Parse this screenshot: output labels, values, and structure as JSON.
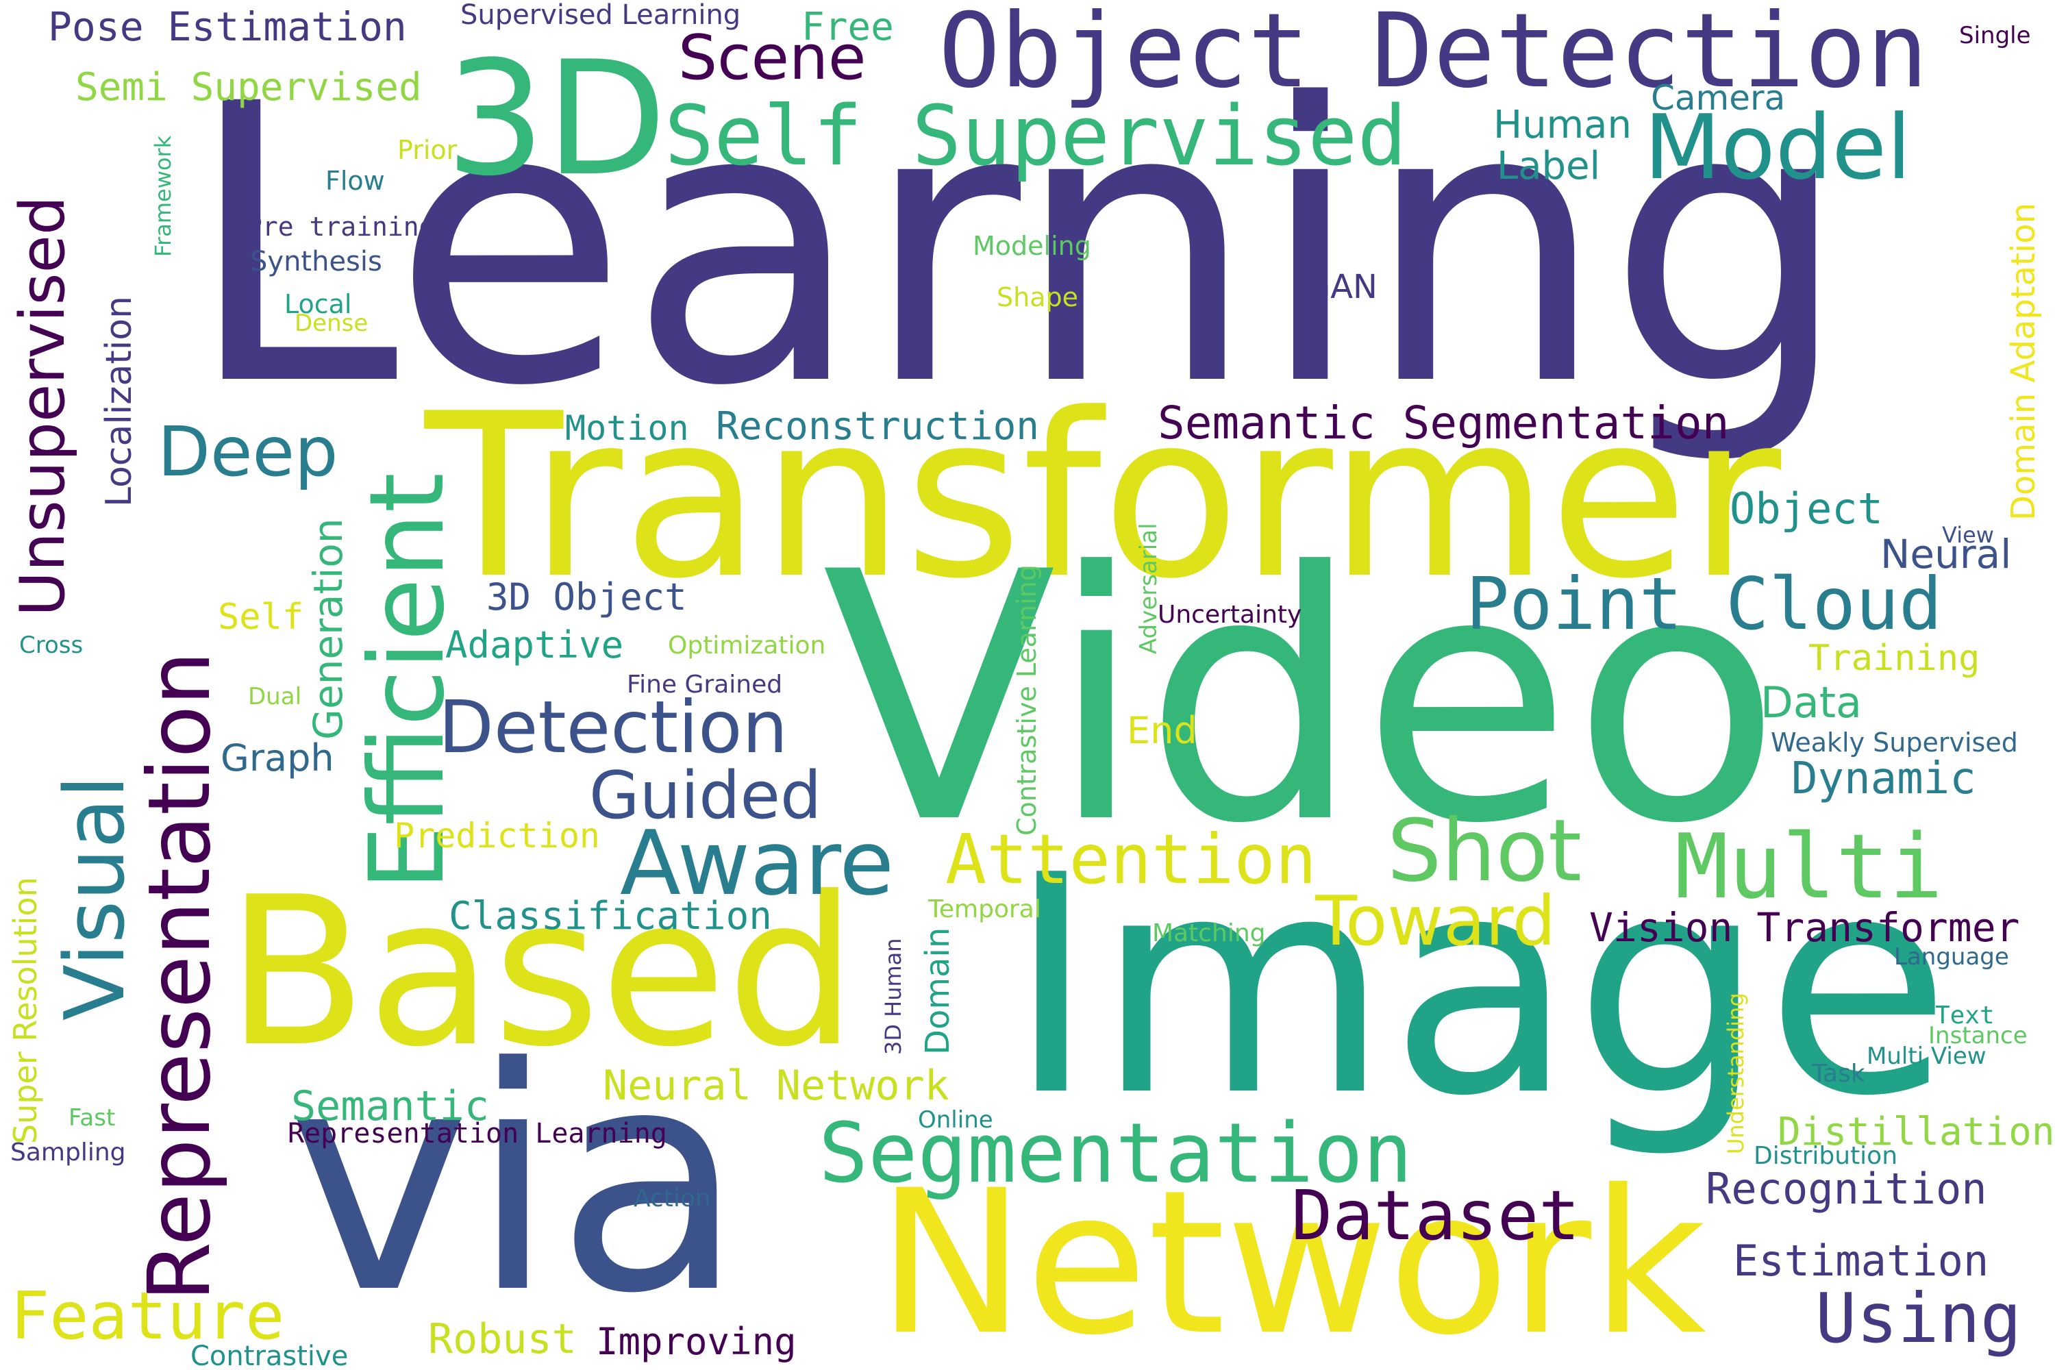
{
  "words": {
    "learning": "Learning",
    "transformer": "Transformer",
    "video": "Video",
    "image": "Image",
    "via": "via",
    "network": "Network",
    "based": "Based",
    "object_detection": "Object Detection",
    "threed": "3D",
    "self_supervised": "Self Supervised",
    "model": "Model",
    "scene": "Scene",
    "free": "Free",
    "pose_estimation": "Pose Estimation",
    "supervised_learning": "Supervised Learning",
    "single": "Single",
    "semi_supervised": "Semi Supervised",
    "prior": "Prior",
    "flow": "Flow",
    "pre_training": "Pre training",
    "synthesis": "Synthesis",
    "local": "Local",
    "dense": "Dense",
    "modeling": "Modeling",
    "shape": "Shape",
    "gan": "GAN",
    "human": "Human",
    "label": "Label",
    "camera": "Camera",
    "framework": "Framework",
    "unsupervised": "Unsupervised",
    "localization": "Localization",
    "domain_adaptation": "Domain Adaptation",
    "motion": "Motion",
    "reconstruction": "Reconstruction",
    "semantic_segmentation": "Semantic Segmentation",
    "deep": "Deep",
    "efficient": "Efficient",
    "representation": "Representation",
    "generation": "Generation",
    "visual": "Visual",
    "object": "Object",
    "view": "View",
    "neural": "Neural",
    "point_cloud": "Point Cloud",
    "threed_object": "3D Object",
    "self": "Self",
    "adaptive": "Adaptive",
    "optimization": "Optimization",
    "cross": "Cross",
    "uncertainty": "Uncertainty",
    "adversarial": "Adversarial",
    "contrastive_learning": "Contrastive Learning",
    "training": "Training",
    "fine_grained": "Fine Grained",
    "dual": "Dual",
    "detection": "Detection",
    "data": "Data",
    "end": "End",
    "weakly_supervised": "Weakly Supervised",
    "graph": "Graph",
    "dynamic": "Dynamic",
    "guided": "Guided",
    "super_resolution": "Super Resolution",
    "prediction": "Prediction",
    "aware": "Aware",
    "attention": "Attention",
    "shot": "Shot",
    "multi": "Multi",
    "temporal": "Temporal",
    "classification": "Classification",
    "toward": "Toward",
    "matching": "Matching",
    "vision_transformer": "Vision Transformer",
    "threed_human": "3D Human",
    "domain": "Domain",
    "language": "Language",
    "understanding": "Understanding",
    "text": "Text",
    "instance": "Instance",
    "multi_view": "Multi View",
    "neural_network": "Neural Network",
    "task": "Task",
    "semantic": "Semantic",
    "fast": "Fast",
    "online": "Online",
    "distillation": "Distillation",
    "representation_learning": "Representation Learning",
    "sampling": "Sampling",
    "segmentation": "Segmentation",
    "distribution": "Distribution",
    "recognition": "Recognition",
    "action": "Action",
    "dataset": "Dataset",
    "estimation": "Estimation",
    "feature": "Feature",
    "using": "Using",
    "robust": "Robust",
    "improving": "Improving",
    "contrastive": "Contrastive"
  }
}
